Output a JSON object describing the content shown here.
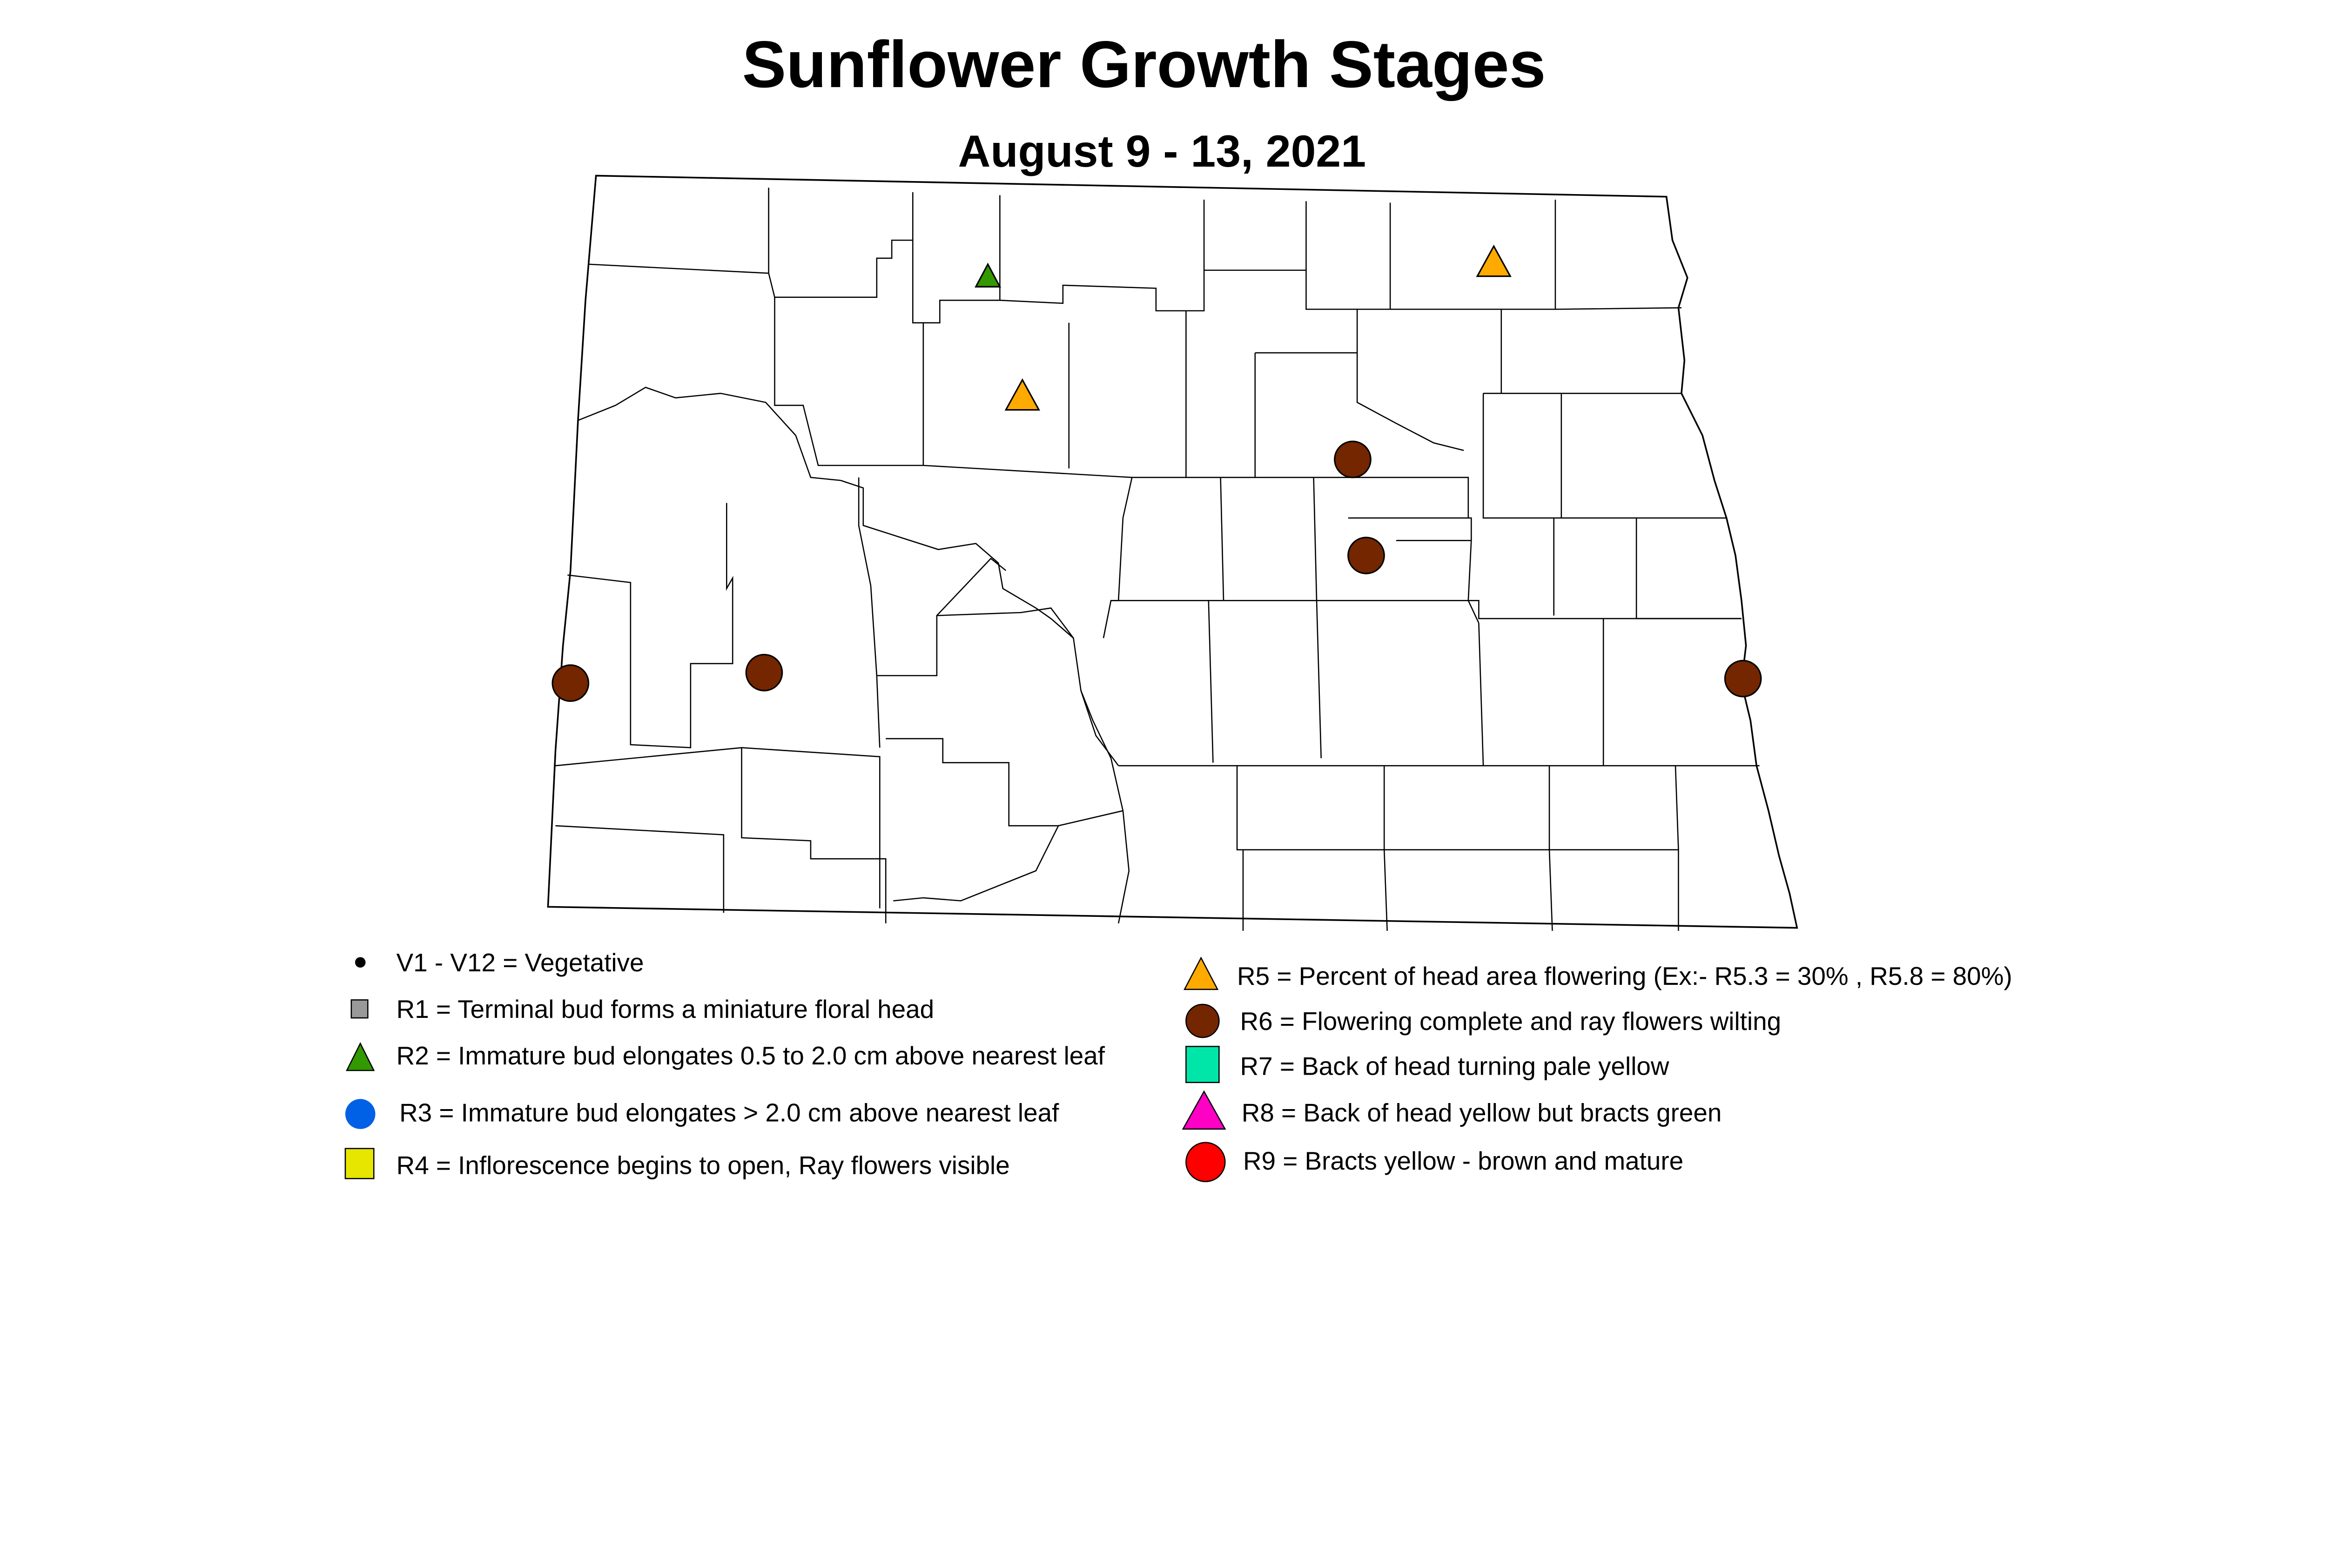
{
  "title": "Sunflower Growth Stages",
  "subtitle": "August 9 - 13, 2021",
  "legend": {
    "left": [
      {
        "label": "V1 - V12 = Vegetative",
        "shape": "small-dot",
        "color": "#000000"
      },
      {
        "label": "R1 = Terminal bud forms a miniature floral head",
        "shape": "square",
        "color": "#999999"
      },
      {
        "label": "R2 = Immature bud elongates 0.5 to 2.0 cm above nearest leaf",
        "shape": "triangle",
        "color": "#339900"
      },
      {
        "label": "R3 = Immature bud elongates > 2.0 cm above nearest leaf",
        "shape": "circle",
        "color": "#0060E6"
      },
      {
        "label": "R4 = Inflorescence begins to open, Ray flowers visible",
        "shape": "square",
        "color": "#E6E600"
      }
    ],
    "right": [
      {
        "label": "R5 = Percent of head area flowering (Ex:- R5.3 = 30% , R5.8 = 80%)",
        "shape": "triangle",
        "color": "#FFAA00"
      },
      {
        "label": "R6 = Flowering complete and ray flowers wilting",
        "shape": "circle",
        "color": "#732600"
      },
      {
        "label": "R7 = Back of head turning pale yellow",
        "shape": "square",
        "color": "#00E6A9"
      },
      {
        "label": "R8 = Back of head yellow but bracts green",
        "shape": "triangle",
        "color": "#FF00C5"
      },
      {
        "label": "R9 = Bracts yellow - brown and mature",
        "shape": "circle",
        "color": "#FF0000"
      }
    ]
  },
  "observations": [
    {
      "stage": "R2",
      "location": "north-central (Bottineau area)"
    },
    {
      "stage": "R5",
      "location": "northeast (Cavalier area)"
    },
    {
      "stage": "R5",
      "location": "north-central (McHenry area)"
    },
    {
      "stage": "R6",
      "location": "Ramsey / Benson area"
    },
    {
      "stage": "R6",
      "location": "Eddy / Foster area"
    },
    {
      "stage": "R6",
      "location": "west (Stark area)"
    },
    {
      "stage": "R6",
      "location": "far west (Golden Valley area)"
    },
    {
      "stage": "R6",
      "location": "east (Traill area)"
    }
  ]
}
